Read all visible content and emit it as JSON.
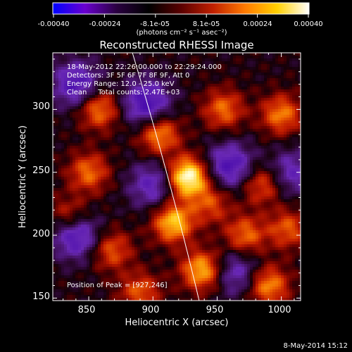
{
  "colorbar": {
    "tick_labels": [
      "-0.00040",
      "-0.00024",
      "-8.1e-05",
      "8.1e-05",
      "0.00024",
      "0.00040"
    ],
    "unit_label": "(photons cm⁻² s⁻¹ asec⁻²)",
    "range": [
      -0.0004,
      0.0004
    ],
    "colors": [
      "#0000ff",
      "#6a00d0",
      "#2a0040",
      "#000000",
      "#5a0000",
      "#c02000",
      "#ff7a00",
      "#ffd000",
      "#ffffff"
    ]
  },
  "chart_data": {
    "type": "heatmap",
    "title": "Reconstructed RHESSI Image",
    "xlabel": "Heliocentric X (arcsec)",
    "ylabel": "Heliocentric Y (arcsec)",
    "xlim": [
      822,
      1015
    ],
    "ylim": [
      148,
      345
    ],
    "x_ticks": [
      "850",
      "900",
      "950",
      "1000"
    ],
    "y_ticks": [
      "150",
      "200",
      "250",
      "300"
    ],
    "annotations": [
      "18-May-2012 22:26:00.000 to 22:29:24.000",
      "Detectors: 3F 5F 6F 7F 8F 9F, Att 0",
      "Energy Range: 12.0 - 25.0 keV",
      "Clean     Total counts: 2.47E+03"
    ],
    "peak_label": "Position of Peak = [927,246]",
    "peak": [
      927,
      246
    ],
    "hotspots": [
      {
        "x": 927,
        "y": 246,
        "v": 1.0
      },
      {
        "x": 916,
        "y": 210,
        "v": 0.75
      },
      {
        "x": 938,
        "y": 172,
        "v": 0.7
      },
      {
        "x": 858,
        "y": 300,
        "v": 0.55
      },
      {
        "x": 905,
        "y": 280,
        "v": 0.6
      },
      {
        "x": 955,
        "y": 300,
        "v": 0.5
      },
      {
        "x": 1000,
        "y": 296,
        "v": 0.55
      },
      {
        "x": 985,
        "y": 240,
        "v": 0.45
      },
      {
        "x": 850,
        "y": 250,
        "v": 0.5
      },
      {
        "x": 868,
        "y": 188,
        "v": 0.45
      },
      {
        "x": 972,
        "y": 200,
        "v": 0.5
      },
      {
        "x": 990,
        "y": 160,
        "v": 0.6
      },
      {
        "x": 835,
        "y": 215,
        "v": 0.4
      },
      {
        "x": 890,
        "y": 155,
        "v": 0.45
      },
      {
        "x": 945,
        "y": 225,
        "v": 0.4
      },
      {
        "x": 1005,
        "y": 205,
        "v": 0.45
      }
    ],
    "coldspots": [
      {
        "x": 840,
        "y": 320,
        "v": 0.55
      },
      {
        "x": 895,
        "y": 305,
        "v": 0.6
      },
      {
        "x": 960,
        "y": 255,
        "v": 0.55
      },
      {
        "x": 840,
        "y": 200,
        "v": 0.6
      },
      {
        "x": 900,
        "y": 240,
        "v": 0.45
      },
      {
        "x": 965,
        "y": 170,
        "v": 0.4
      },
      {
        "x": 1008,
        "y": 250,
        "v": 0.4
      }
    ]
  },
  "footer": {
    "date": "8-May-2014 15:12"
  }
}
